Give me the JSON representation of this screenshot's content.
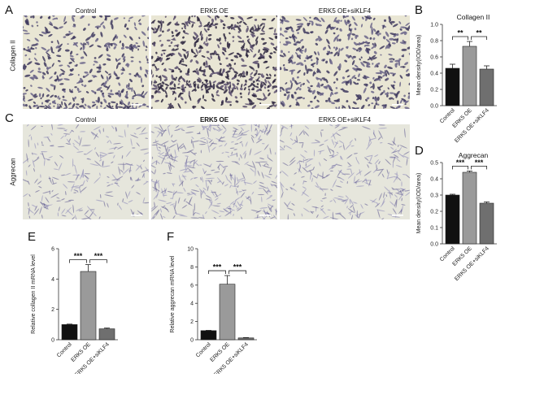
{
  "panels": {
    "A": {
      "letter": "A",
      "row_label": "Collagen II",
      "titles": [
        "Control",
        "ERK5 OE",
        "ERK5 OE+siKLF4"
      ]
    },
    "C": {
      "letter": "C",
      "row_label": "Aggrecan",
      "titles": [
        "Control",
        "ERK5 OE",
        "ERK5 OE+siKLF4"
      ]
    },
    "B": {
      "letter": "B"
    },
    "D": {
      "letter": "D"
    },
    "E": {
      "letter": "E"
    },
    "F": {
      "letter": "F"
    }
  },
  "colors": {
    "control_bar": "#111111",
    "oe_bar": "#9a9a9a",
    "sik_bar": "#6f6f6f",
    "collagen_bg": "#e9e6d4",
    "aggrecan_bg": "#e6e6dc",
    "stain": "#3b3560"
  },
  "chart_data": [
    {
      "id": "B",
      "type": "bar",
      "title": "Collagen II",
      "ylabel": "Mean density(IOD/area)",
      "categories": [
        "Control",
        "ERK5 OE",
        "ERK5 OE+siKLF4"
      ],
      "values": [
        0.46,
        0.73,
        0.45
      ],
      "errors": [
        0.05,
        0.06,
        0.04
      ],
      "ylim": [
        0,
        1.0
      ],
      "yticks": [
        "0.0",
        "0.2",
        "0.4",
        "0.6",
        "0.8",
        "1.0"
      ],
      "significance": [
        "**",
        "**"
      ]
    },
    {
      "id": "D",
      "type": "bar",
      "title": "Aggrecan",
      "ylabel": "Mean density(IOD/area)",
      "categories": [
        "Control",
        "ERK5 OE",
        "ERK5 OE+siKLF4"
      ],
      "values": [
        0.3,
        0.44,
        0.25
      ],
      "errors": [
        0.005,
        0.008,
        0.008
      ],
      "ylim": [
        0,
        0.5
      ],
      "yticks": [
        "0.0",
        "0.1",
        "0.2",
        "0.3",
        "0.4",
        "0.5"
      ],
      "significance": [
        "***",
        "***"
      ]
    },
    {
      "id": "E",
      "type": "bar",
      "title": "",
      "ylabel": "Relative collagen II mRNA level",
      "categories": [
        "Control",
        "ERK5 OE",
        "ERK5 OE+siKLF4"
      ],
      "values": [
        1.0,
        4.5,
        0.72
      ],
      "errors": [
        0.03,
        0.45,
        0.05
      ],
      "ylim": [
        0,
        6
      ],
      "yticks": [
        "0",
        "2",
        "4",
        "6"
      ],
      "significance": [
        "***",
        "***"
      ]
    },
    {
      "id": "F",
      "type": "bar",
      "title": "",
      "ylabel": "Relative aggrecan mRNA level",
      "categories": [
        "Control",
        "ERK5 OE",
        "ERK5 OE+siKLF4"
      ],
      "values": [
        1.0,
        6.1,
        0.2
      ],
      "errors": [
        0.03,
        0.95,
        0.04
      ],
      "ylim": [
        0,
        10
      ],
      "yticks": [
        "0",
        "2",
        "4",
        "6",
        "8",
        "10"
      ],
      "significance": [
        "***",
        "***"
      ]
    }
  ]
}
